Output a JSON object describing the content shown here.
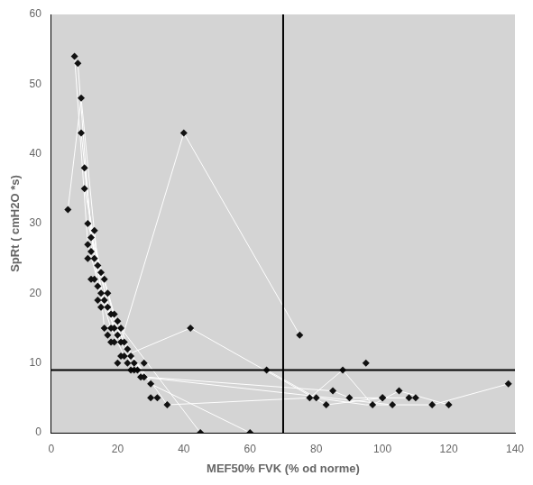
{
  "chart_data": {
    "type": "scatter",
    "xlabel": "MEF50% FVK (% od norme)",
    "ylabel": "SpRt ( cmH2O *s)",
    "xlim": [
      0,
      140
    ],
    "ylim": [
      0,
      60
    ],
    "xticks": [
      0,
      20,
      40,
      60,
      80,
      100,
      120,
      140
    ],
    "yticks": [
      0,
      10,
      20,
      30,
      40,
      50,
      60
    ],
    "grid": false,
    "hline": 9,
    "vline": 70,
    "series": [
      {
        "type": "line",
        "color": "#ffffff",
        "x": [
          5,
          9,
          14,
          18,
          23,
          30,
          60
        ],
        "values": [
          32,
          48,
          24,
          17,
          12,
          7,
          0
        ]
      },
      {
        "type": "line",
        "color": "#ffffff",
        "x": [
          7,
          11,
          15,
          19,
          25,
          65,
          80,
          95,
          115,
          138
        ],
        "values": [
          54,
          27,
          20,
          15,
          9,
          9,
          5,
          4,
          4,
          7
        ]
      },
      {
        "type": "line",
        "color": "#ffffff",
        "x": [
          8,
          12,
          17,
          21,
          40,
          75
        ],
        "values": [
          53,
          28,
          20,
          13,
          43,
          14
        ]
      },
      {
        "type": "line",
        "color": "#ffffff",
        "x": [
          9,
          13,
          16,
          20,
          35,
          78,
          88,
          97,
          105,
          120
        ],
        "values": [
          43,
          25,
          19,
          14,
          4,
          5,
          9,
          4,
          6,
          4
        ]
      },
      {
        "type": "line",
        "color": "#ffffff",
        "x": [
          10,
          14,
          18,
          22,
          42,
          83,
          100,
          108,
          110
        ],
        "values": [
          38,
          21,
          15,
          11,
          15,
          4,
          5,
          5,
          5
        ]
      },
      {
        "type": "line",
        "color": "#ffffff",
        "x": [
          10,
          15,
          17,
          22,
          28,
          85,
          90,
          100
        ],
        "values": [
          35,
          23,
          18,
          13,
          8,
          6,
          5,
          5
        ]
      },
      {
        "type": "line",
        "color": "#ffffff",
        "x": [
          11,
          16,
          19,
          21,
          45
        ],
        "values": [
          30,
          22,
          17,
          15,
          0
        ]
      },
      {
        "type": "line",
        "color": "#ffffff",
        "x": [
          12,
          13,
          16,
          20,
          27,
          103
        ],
        "values": [
          26,
          29,
          15,
          16,
          8,
          4
        ]
      },
      {
        "type": "scatter",
        "color": "#111111",
        "marker": "diamond",
        "x": [
          5,
          7,
          8,
          9,
          9,
          10,
          10,
          11,
          11,
          11,
          12,
          12,
          12,
          13,
          13,
          13,
          14,
          14,
          14,
          15,
          15,
          15,
          16,
          16,
          16,
          17,
          17,
          17,
          18,
          18,
          18,
          19,
          19,
          19,
          20,
          20,
          20,
          21,
          21,
          21,
          22,
          22,
          23,
          23,
          24,
          24,
          25,
          25,
          26,
          27,
          28,
          28,
          30,
          30,
          32,
          35,
          40,
          42,
          45,
          60,
          65,
          75,
          78,
          80,
          83,
          85,
          88,
          90,
          95,
          97,
          100,
          100,
          103,
          105,
          108,
          110,
          115,
          120,
          138
        ],
        "values": [
          32,
          54,
          53,
          48,
          43,
          38,
          35,
          30,
          27,
          25,
          28,
          26,
          22,
          29,
          25,
          22,
          24,
          21,
          19,
          23,
          20,
          18,
          22,
          19,
          15,
          20,
          18,
          14,
          17,
          15,
          13,
          17,
          15,
          13,
          16,
          14,
          10,
          15,
          13,
          11,
          13,
          11,
          12,
          10,
          11,
          9,
          10,
          9,
          9,
          8,
          8,
          10,
          7,
          5,
          5,
          4,
          43,
          15,
          0,
          0,
          9,
          14,
          5,
          5,
          4,
          6,
          9,
          5,
          10,
          4,
          5,
          5,
          4,
          6,
          5,
          5,
          4,
          4,
          7
        ]
      }
    ]
  }
}
